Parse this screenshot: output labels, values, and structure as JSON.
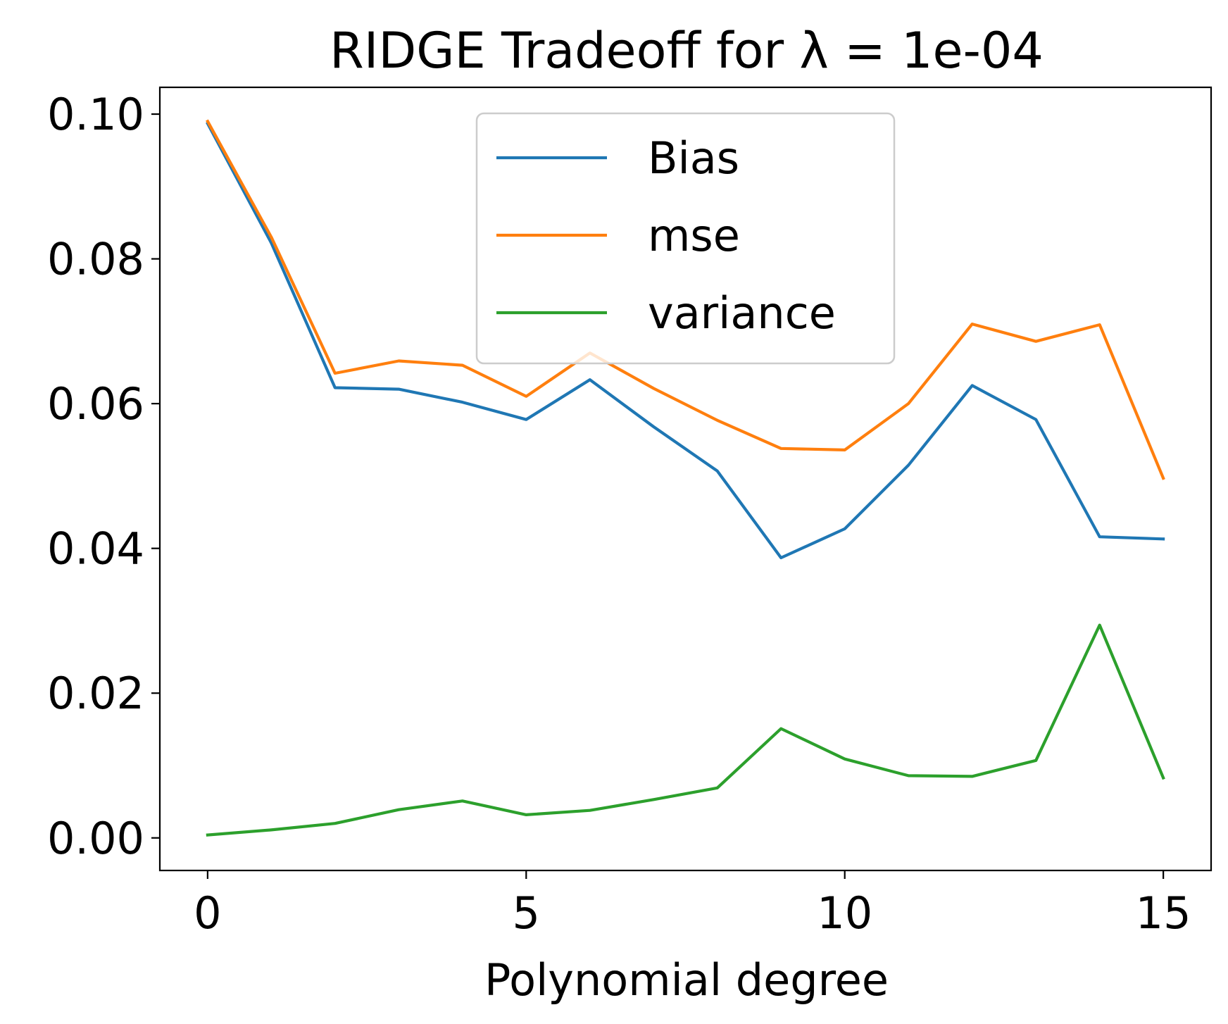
{
  "chart_data": {
    "type": "line",
    "title": "RIDGE Tradeoff for λ =  1e-04",
    "xlabel": "Polynomial degree",
    "ylabel": "",
    "x": [
      0,
      1,
      2,
      3,
      4,
      5,
      6,
      7,
      8,
      9,
      10,
      11,
      12,
      13,
      14,
      15
    ],
    "xlim": [
      -0.75,
      15.75
    ],
    "ylim": [
      -0.0045,
      0.1037
    ],
    "xticks": [
      0,
      5,
      10,
      15
    ],
    "xtick_labels": [
      "0",
      "5",
      "10",
      "15"
    ],
    "yticks": [
      0.0,
      0.02,
      0.04,
      0.06,
      0.08,
      0.1
    ],
    "ytick_labels": [
      "0.00",
      "0.02",
      "0.04",
      "0.06",
      "0.08",
      "0.10"
    ],
    "grid": false,
    "legend_position": "upper center",
    "series": [
      {
        "name": "Bias",
        "color": "#1f77b4",
        "values": [
          0.0987,
          0.0822,
          0.0622,
          0.062,
          0.0602,
          0.0578,
          0.0633,
          0.0568,
          0.0507,
          0.0387,
          0.0427,
          0.0515,
          0.0625,
          0.0578,
          0.0416,
          0.0413
        ]
      },
      {
        "name": "mse",
        "color": "#ff7f0e",
        "values": [
          0.099,
          0.083,
          0.0642,
          0.0659,
          0.0653,
          0.061,
          0.067,
          0.0621,
          0.0577,
          0.0538,
          0.0536,
          0.06,
          0.071,
          0.0686,
          0.0709,
          0.0497
        ]
      },
      {
        "name": "variance",
        "color": "#2ca02c",
        "values": [
          0.0004,
          0.0011,
          0.002,
          0.0039,
          0.0051,
          0.0032,
          0.0038,
          0.0053,
          0.0069,
          0.0151,
          0.0109,
          0.0086,
          0.0085,
          0.0107,
          0.0294,
          0.0083
        ]
      }
    ]
  }
}
